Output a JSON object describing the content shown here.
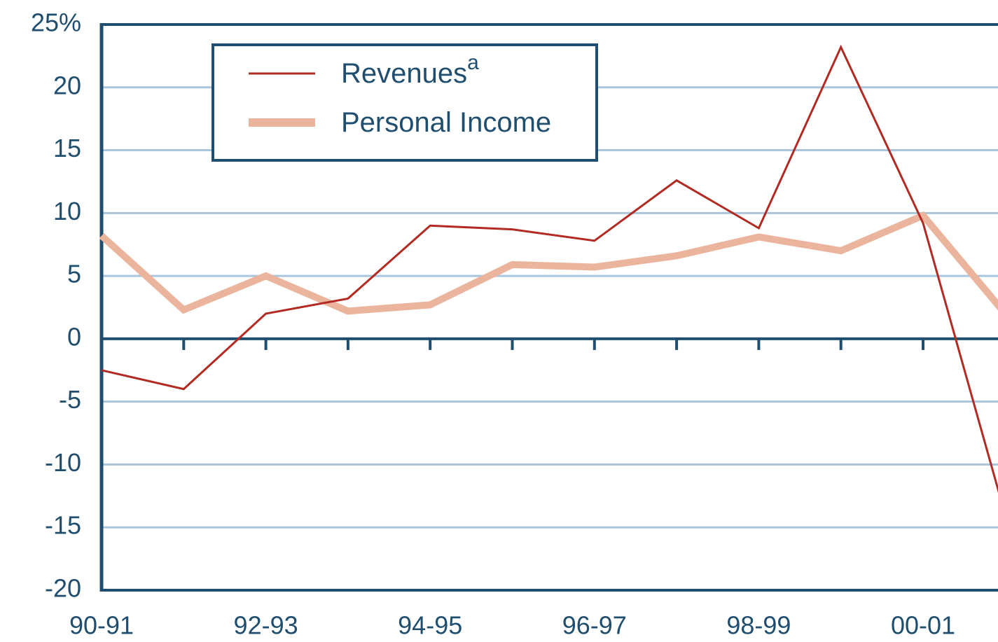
{
  "chart_data": {
    "type": "line",
    "categories": [
      "90-91",
      null,
      "92-93",
      null,
      "94-95",
      null,
      "96-97",
      null,
      "98-99",
      null,
      "00-01",
      null
    ],
    "series": [
      {
        "name": "Revenues",
        "name_note": "a",
        "color": "#b22a22",
        "values": [
          -2.5,
          -4,
          2,
          3.2,
          9,
          8.7,
          7.8,
          12.6,
          8.8,
          23.2,
          9.2,
          -14
        ]
      },
      {
        "name": "Personal Income",
        "color": "#ebb59d",
        "values": [
          8.2,
          2.3,
          5,
          2.2,
          2.7,
          5.9,
          5.7,
          6.6,
          8.1,
          7,
          9.8,
          2
        ]
      }
    ],
    "ylim": [
      -20,
      25
    ],
    "yticks": [
      -20,
      -15,
      -10,
      -5,
      0,
      5,
      10,
      15,
      20,
      {
        "value": 25,
        "label": "25%"
      }
    ],
    "grid": true,
    "legend": "upper left"
  }
}
